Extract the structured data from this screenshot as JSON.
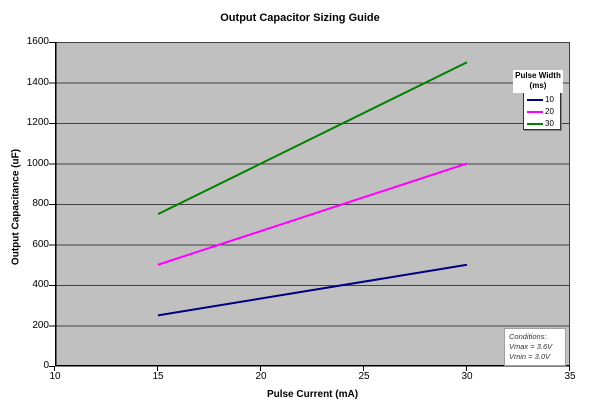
{
  "chart_data": {
    "type": "line",
    "title": "Output Capacitor Sizing Guide",
    "xlabel": "Pulse Current (mA)",
    "ylabel": "Output Capacitance (uF)",
    "xlim": [
      10,
      35
    ],
    "ylim": [
      0,
      1600
    ],
    "xticks": [
      10,
      15,
      20,
      25,
      30,
      35
    ],
    "yticks": [
      0,
      200,
      400,
      600,
      800,
      1000,
      1200,
      1400,
      1600
    ],
    "grid": "horizontal",
    "legend_position": "inside-top-right",
    "plot_bg_color": "#c0c0c0",
    "gridline_color": "#404040",
    "axis_color": "#000000",
    "x": [
      15,
      30
    ],
    "series": [
      {
        "name": "10",
        "color": "#000080",
        "values": [
          250,
          500
        ]
      },
      {
        "name": "20",
        "color": "#ff00ff",
        "values": [
          500,
          1000
        ]
      },
      {
        "name": "30",
        "color": "#008000",
        "values": [
          750,
          1500
        ]
      }
    ],
    "legend": {
      "title_line1": "Pulse Width",
      "title_line2": "(ms)"
    }
  },
  "annotations": {
    "conditions": {
      "line1": "Conditions:",
      "line2": "Vmax = 3.6V",
      "line3": "Vmin = 3.0V"
    }
  }
}
